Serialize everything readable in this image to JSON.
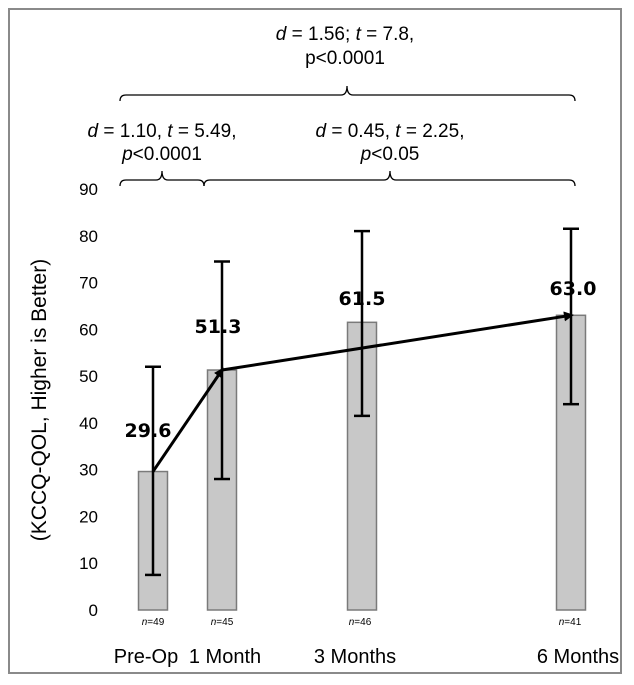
{
  "chart_data": {
    "type": "bar",
    "ylabel": "(KCCQ-QOL, Higher is Better)",
    "ylim": [
      0,
      90
    ],
    "yticks": [
      0,
      10,
      20,
      30,
      40,
      50,
      60,
      70,
      80,
      90
    ],
    "categories": [
      "Pre-Op",
      "1 Month",
      "3 Months",
      "6 Months"
    ],
    "x_months": [
      0,
      1,
      3,
      6
    ],
    "values": [
      29.6,
      51.3,
      61.5,
      63.0
    ],
    "value_labels": [
      "29.6",
      "51.3",
      "61.5",
      "63.0"
    ],
    "error_low": [
      7.5,
      28,
      41.5,
      44
    ],
    "error_high": [
      52,
      74.5,
      81,
      81.5
    ],
    "n_labels": [
      {
        "n": "n",
        "eq": "=49"
      },
      {
        "n": "n",
        "eq": "=45"
      },
      {
        "n": "n",
        "eq": "=46"
      },
      {
        "n": "n",
        "eq": "=41"
      }
    ],
    "connector_line": true,
    "annotations": [
      {
        "id": "pre-to-1m",
        "from": 0,
        "to": 1,
        "line1": [
          {
            "t": "d",
            "i": true
          },
          {
            "t": " = 1.10, ",
            "i": false
          },
          {
            "t": "t",
            "i": true
          },
          {
            "t": " = 5.49,",
            "i": false
          }
        ],
        "line2": [
          {
            "t": "p",
            "i": true
          },
          {
            "t": "<0.0001",
            "i": false
          }
        ]
      },
      {
        "id": "1m-to-6m",
        "from": 1,
        "to": 3,
        "line1": [
          {
            "t": "d",
            "i": true
          },
          {
            "t": " = 0.45, ",
            "i": false
          },
          {
            "t": "t",
            "i": true
          },
          {
            "t": " = 2.25,",
            "i": false
          }
        ],
        "line2": [
          {
            "t": "p",
            "i": true
          },
          {
            "t": "<0.05",
            "i": false
          }
        ]
      },
      {
        "id": "pre-to-6m",
        "from": 0,
        "to": 3,
        "line1": [
          {
            "t": "d",
            "i": true
          },
          {
            "t": " = 1.56; ",
            "i": false
          },
          {
            "t": "t",
            "i": true
          },
          {
            "t": " = 7.8,",
            "i": false
          }
        ],
        "line2": [
          {
            "t": "p<0.0001",
            "i": false
          }
        ]
      }
    ],
    "colors": {
      "bar_fill": "#c8c8c8",
      "bar_stroke": "#7a7a7a",
      "line": "#000000",
      "frame": "#8a8a8a"
    },
    "grid": false,
    "legend": "none"
  }
}
